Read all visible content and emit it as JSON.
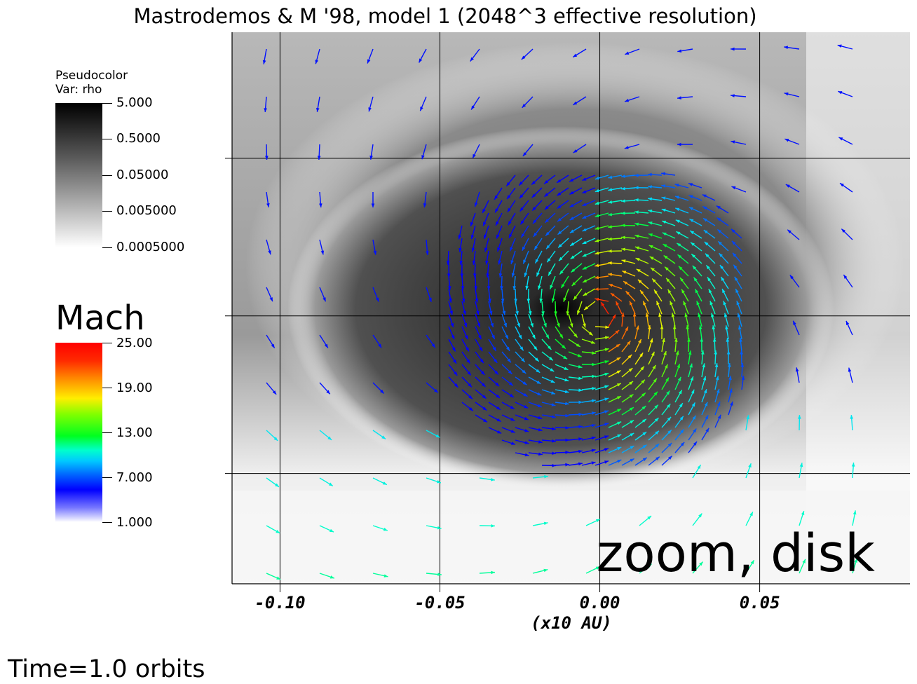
{
  "chart_data": {
    "type": "heatmap",
    "title": "Mastrodemos & M '98, model 1 (2048^3 effective resolution)",
    "xlabel": "(x10 AU)",
    "ylabel": "",
    "x_ticks": [
      "-0.10",
      "-0.05",
      "0.00",
      "0.05"
    ],
    "x_tick_values": [
      -0.1,
      -0.05,
      0.0,
      0.05
    ],
    "xlim": [
      -0.115,
      0.097
    ],
    "ylim": [
      -0.085,
      0.09
    ],
    "grid": true,
    "density_legend": {
      "line1": "Pseudocolor",
      "line2": "Var: rho",
      "ticks": [
        "5.000",
        "0.5000",
        "0.05000",
        "0.005000",
        "0.0005000"
      ],
      "scale": "log",
      "colormap": "gray"
    },
    "mach_legend": {
      "title": "Mach",
      "ticks": [
        "25.00",
        "19.00",
        "13.00",
        "7.000",
        "1.000"
      ],
      "range": [
        1.0,
        25.0
      ],
      "colormap": "hot_desaturated"
    },
    "overlay_text": "zoom, disk",
    "footer": "Time=1.0 orbits",
    "colors": {
      "grid": "#000000",
      "mach_high": "#ff0000",
      "mach_mid": "#00ff40",
      "mach_low": "#0000ff"
    }
  }
}
